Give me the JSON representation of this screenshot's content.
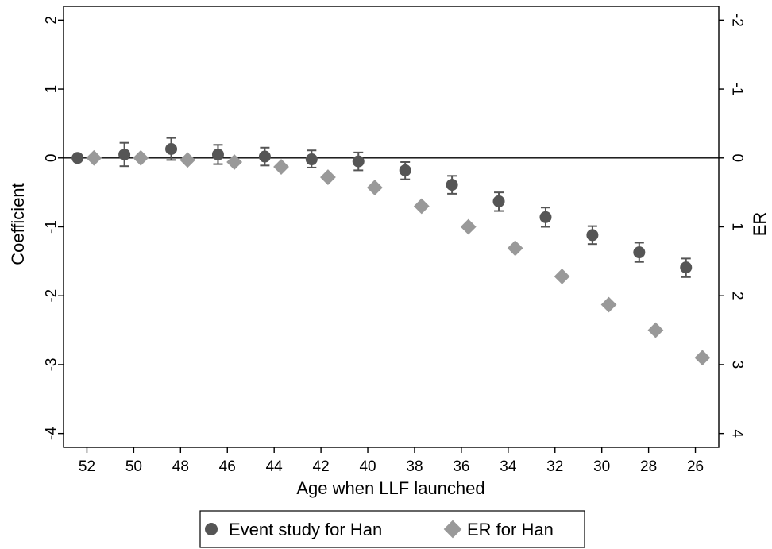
{
  "chart_data": {
    "type": "scatter",
    "xlabel": "Age when LLF launched",
    "ylabel": "Coefficient",
    "y2label": "ER",
    "x_ticks": [
      52,
      50,
      48,
      46,
      44,
      42,
      40,
      38,
      36,
      34,
      32,
      30,
      28,
      26
    ],
    "xlim": [
      53,
      25
    ],
    "y_ticks": [
      2,
      1,
      0,
      -1,
      -2,
      -3,
      -4
    ],
    "ylim": [
      -4.2,
      2.2
    ],
    "y2_ticks": [
      -2,
      -1,
      0,
      1,
      2,
      3,
      4
    ],
    "y2_reversed": true,
    "zero_line": true,
    "grid": false,
    "legend_position": "bottom",
    "series": [
      {
        "name": "Event study for Han",
        "marker": "circle",
        "color": "#555555",
        "x": [
          52.4,
          50.4,
          48.4,
          46.4,
          44.4,
          42.4,
          40.4,
          38.4,
          36.4,
          34.4,
          32.4,
          30.4,
          28.4,
          26.4
        ],
        "y": [
          0.0,
          0.05,
          0.13,
          0.05,
          0.02,
          -0.02,
          -0.05,
          -0.18,
          -0.39,
          -0.63,
          -0.86,
          -1.12,
          -1.37,
          -1.59
        ],
        "ci_low": [
          0.0,
          -0.12,
          -0.03,
          -0.09,
          -0.11,
          -0.14,
          -0.18,
          -0.31,
          -0.52,
          -0.77,
          -1.0,
          -1.25,
          -1.51,
          -1.73
        ],
        "ci_high": [
          0.0,
          0.22,
          0.29,
          0.19,
          0.15,
          0.11,
          0.08,
          -0.06,
          -0.26,
          -0.5,
          -0.72,
          -0.99,
          -1.23,
          -1.46
        ]
      },
      {
        "name": "ER for Han",
        "marker": "diamond",
        "color": "#999999",
        "axis": "right",
        "x": [
          51.7,
          49.7,
          47.7,
          45.7,
          43.7,
          41.7,
          39.7,
          37.7,
          35.7,
          33.7,
          31.7,
          29.7,
          27.7,
          25.7
        ],
        "y": [
          0.0,
          0.0,
          0.03,
          0.06,
          0.13,
          0.28,
          0.43,
          0.7,
          1.0,
          1.31,
          1.72,
          2.13,
          2.5,
          2.9
        ]
      }
    ]
  },
  "colors": {
    "axis": "#000000",
    "event_marker": "#555555",
    "er_marker": "#999999",
    "ci_bar": "#555555"
  }
}
